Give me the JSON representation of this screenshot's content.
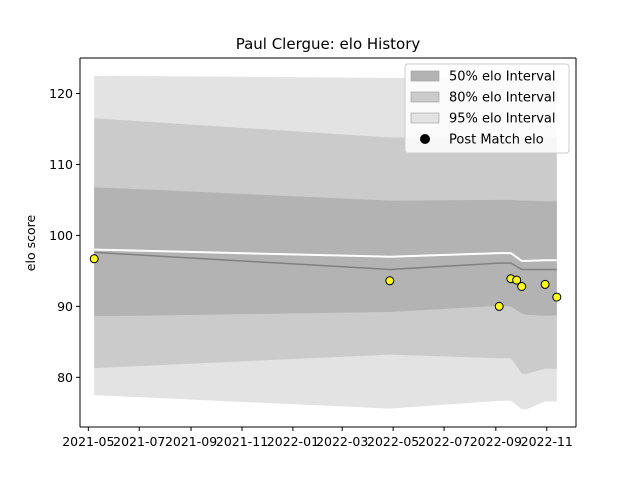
{
  "chart_data": {
    "type": "area",
    "title": "Paul Clergue: elo History",
    "xlabel": "",
    "ylabel": "elo score",
    "x_axis_type": "date",
    "xlim": [
      "2021-04-21",
      "2022-12-06"
    ],
    "ylim": [
      73,
      125
    ],
    "x_ticks": [
      "2021-05-01",
      "2021-07-01",
      "2021-09-01",
      "2021-11-01",
      "2022-01-01",
      "2022-03-01",
      "2022-05-01",
      "2022-07-01",
      "2022-09-01",
      "2022-11-01"
    ],
    "x_tick_labels": [
      "2021-05",
      "2021-07",
      "2021-09",
      "2021-11",
      "2022-01",
      "2022-03",
      "2022-05",
      "2022-07",
      "2022-09",
      "2022-11"
    ],
    "y_ticks": [
      80,
      90,
      100,
      110,
      120
    ],
    "y_tick_labels": [
      "80",
      "90",
      "100",
      "110",
      "120"
    ],
    "grid": false,
    "legend_position": "top-right",
    "dates": [
      "2021-05-08",
      "2022-04-27",
      "2022-09-05",
      "2022-09-19",
      "2022-10-02",
      "2022-10-08",
      "2022-10-30",
      "2022-11-13"
    ],
    "bands": [
      {
        "name": "95% elo Interval",
        "color": "#e3e3e3",
        "lower": [
          77.5,
          75.6,
          76.7,
          76.7,
          75.5,
          75.5,
          76.6,
          76.6
        ],
        "upper": [
          122.5,
          122.2,
          122.2,
          122.2,
          122.2,
          122.2,
          122.2,
          122.2
        ]
      },
      {
        "name": "80% elo Interval",
        "color": "#cbcbcb",
        "lower": [
          81.3,
          83.2,
          82.7,
          82.7,
          80.5,
          80.5,
          81.2,
          81.2
        ],
        "upper": [
          116.5,
          113.8,
          113.8,
          113.8,
          113.8,
          113.8,
          113.8,
          113.8
        ]
      },
      {
        "name": "50% elo Interval",
        "color": "#b3b3b3",
        "lower": [
          88.6,
          89.2,
          90.1,
          90.0,
          89.0,
          88.8,
          88.7,
          88.7
        ],
        "upper": [
          106.8,
          104.9,
          105.0,
          105.0,
          104.9,
          104.9,
          104.8,
          104.8
        ]
      }
    ],
    "mean_line": {
      "color": "#808080",
      "y": [
        97.6,
        95.2,
        96.1,
        96.1,
        95.2,
        95.2,
        95.2,
        95.2
      ]
    },
    "upper_line": {
      "color": "#ffffff",
      "y": [
        98.0,
        97.0,
        97.5,
        97.5,
        96.4,
        96.4,
        96.5,
        96.5
      ]
    },
    "post_match": {
      "name": "Post Match elo",
      "color": "#ffff22",
      "edge": "#000000",
      "dates": [
        "2021-05-08",
        "2022-04-27",
        "2022-09-05",
        "2022-09-19",
        "2022-09-26",
        "2022-10-02",
        "2022-10-30",
        "2022-11-13"
      ],
      "values": [
        96.7,
        93.6,
        90.0,
        93.9,
        93.7,
        92.8,
        93.1,
        91.3
      ]
    },
    "legend": [
      {
        "label": "50% elo Interval",
        "marker": "patch",
        "color": "#b3b3b3"
      },
      {
        "label": "80% elo Interval",
        "marker": "patch",
        "color": "#cbcbcb"
      },
      {
        "label": "95% elo Interval",
        "marker": "patch",
        "color": "#e3e3e3"
      },
      {
        "label": "Post Match elo",
        "marker": "dot",
        "color": "#000000"
      }
    ]
  }
}
